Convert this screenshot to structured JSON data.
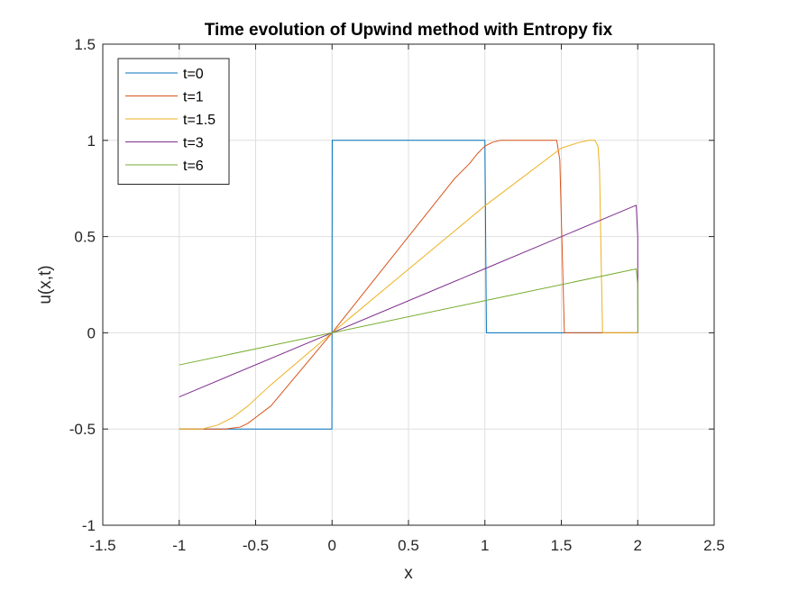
{
  "chart_data": {
    "type": "line",
    "title": "Time evolution of Upwind method with Entropy fix",
    "xlabel": "x",
    "ylabel": "u(x,t)",
    "xlim": [
      -1.5,
      2.5
    ],
    "ylim": [
      -1,
      1.5
    ],
    "xticks": [
      -1.5,
      -1,
      -0.5,
      0,
      0.5,
      1,
      1.5,
      2,
      2.5
    ],
    "xtick_labels": [
      "-1.5",
      "-1",
      "-0.5",
      "0",
      "0.5",
      "1",
      "1.5",
      "2",
      "2.5"
    ],
    "yticks": [
      -1,
      -0.5,
      0,
      0.5,
      1,
      1.5
    ],
    "ytick_labels": [
      "-1",
      "-0.5",
      "0",
      "0.5",
      "1",
      "1.5"
    ],
    "grid": true,
    "legend_position": "top-left",
    "series": [
      {
        "name": "t=0",
        "color": "#0072BD",
        "x": [
          -1,
          -0.001,
          0.001,
          1,
          1.01,
          2
        ],
        "y": [
          -0.5,
          -0.5,
          1,
          1,
          0,
          0
        ]
      },
      {
        "name": "t=1",
        "color": "#D95319",
        "x": [
          -1,
          -0.7,
          -0.6,
          -0.55,
          -0.5,
          -0.4,
          0,
          0.5,
          0.8,
          0.9,
          0.95,
          1.0,
          1.05,
          1.1,
          1.2,
          1.3,
          1.4,
          1.47,
          1.49,
          1.51,
          1.52,
          1.6,
          2
        ],
        "y": [
          -0.5,
          -0.5,
          -0.49,
          -0.47,
          -0.44,
          -0.38,
          0,
          0.5,
          0.8,
          0.88,
          0.93,
          0.97,
          0.99,
          1.0,
          1.0,
          1.0,
          1.0,
          1.0,
          0.9,
          0.3,
          0,
          0,
          0
        ]
      },
      {
        "name": "t=1.5",
        "color": "#EDB120",
        "x": [
          -1,
          -0.85,
          -0.75,
          -0.65,
          -0.55,
          -0.4,
          0,
          0.5,
          1.0,
          1.5,
          1.62,
          1.68,
          1.72,
          1.74,
          1.75,
          1.76,
          1.77,
          2
        ],
        "y": [
          -0.5,
          -0.5,
          -0.48,
          -0.44,
          -0.38,
          -0.27,
          0,
          0.33,
          0.66,
          0.96,
          0.99,
          1.0,
          1.0,
          0.97,
          0.85,
          0.4,
          0,
          0
        ]
      },
      {
        "name": "t=3",
        "color": "#7E2F8E",
        "x": [
          -1,
          0,
          1,
          1.99,
          2.0,
          2.001
        ],
        "y": [
          -0.333,
          0,
          0.333,
          0.663,
          0.5,
          0
        ]
      },
      {
        "name": "t=6",
        "color": "#77AC30",
        "x": [
          -1,
          0,
          1,
          1.99,
          2.0,
          2.001
        ],
        "y": [
          -0.167,
          0,
          0.167,
          0.332,
          0.25,
          0
        ]
      }
    ]
  }
}
